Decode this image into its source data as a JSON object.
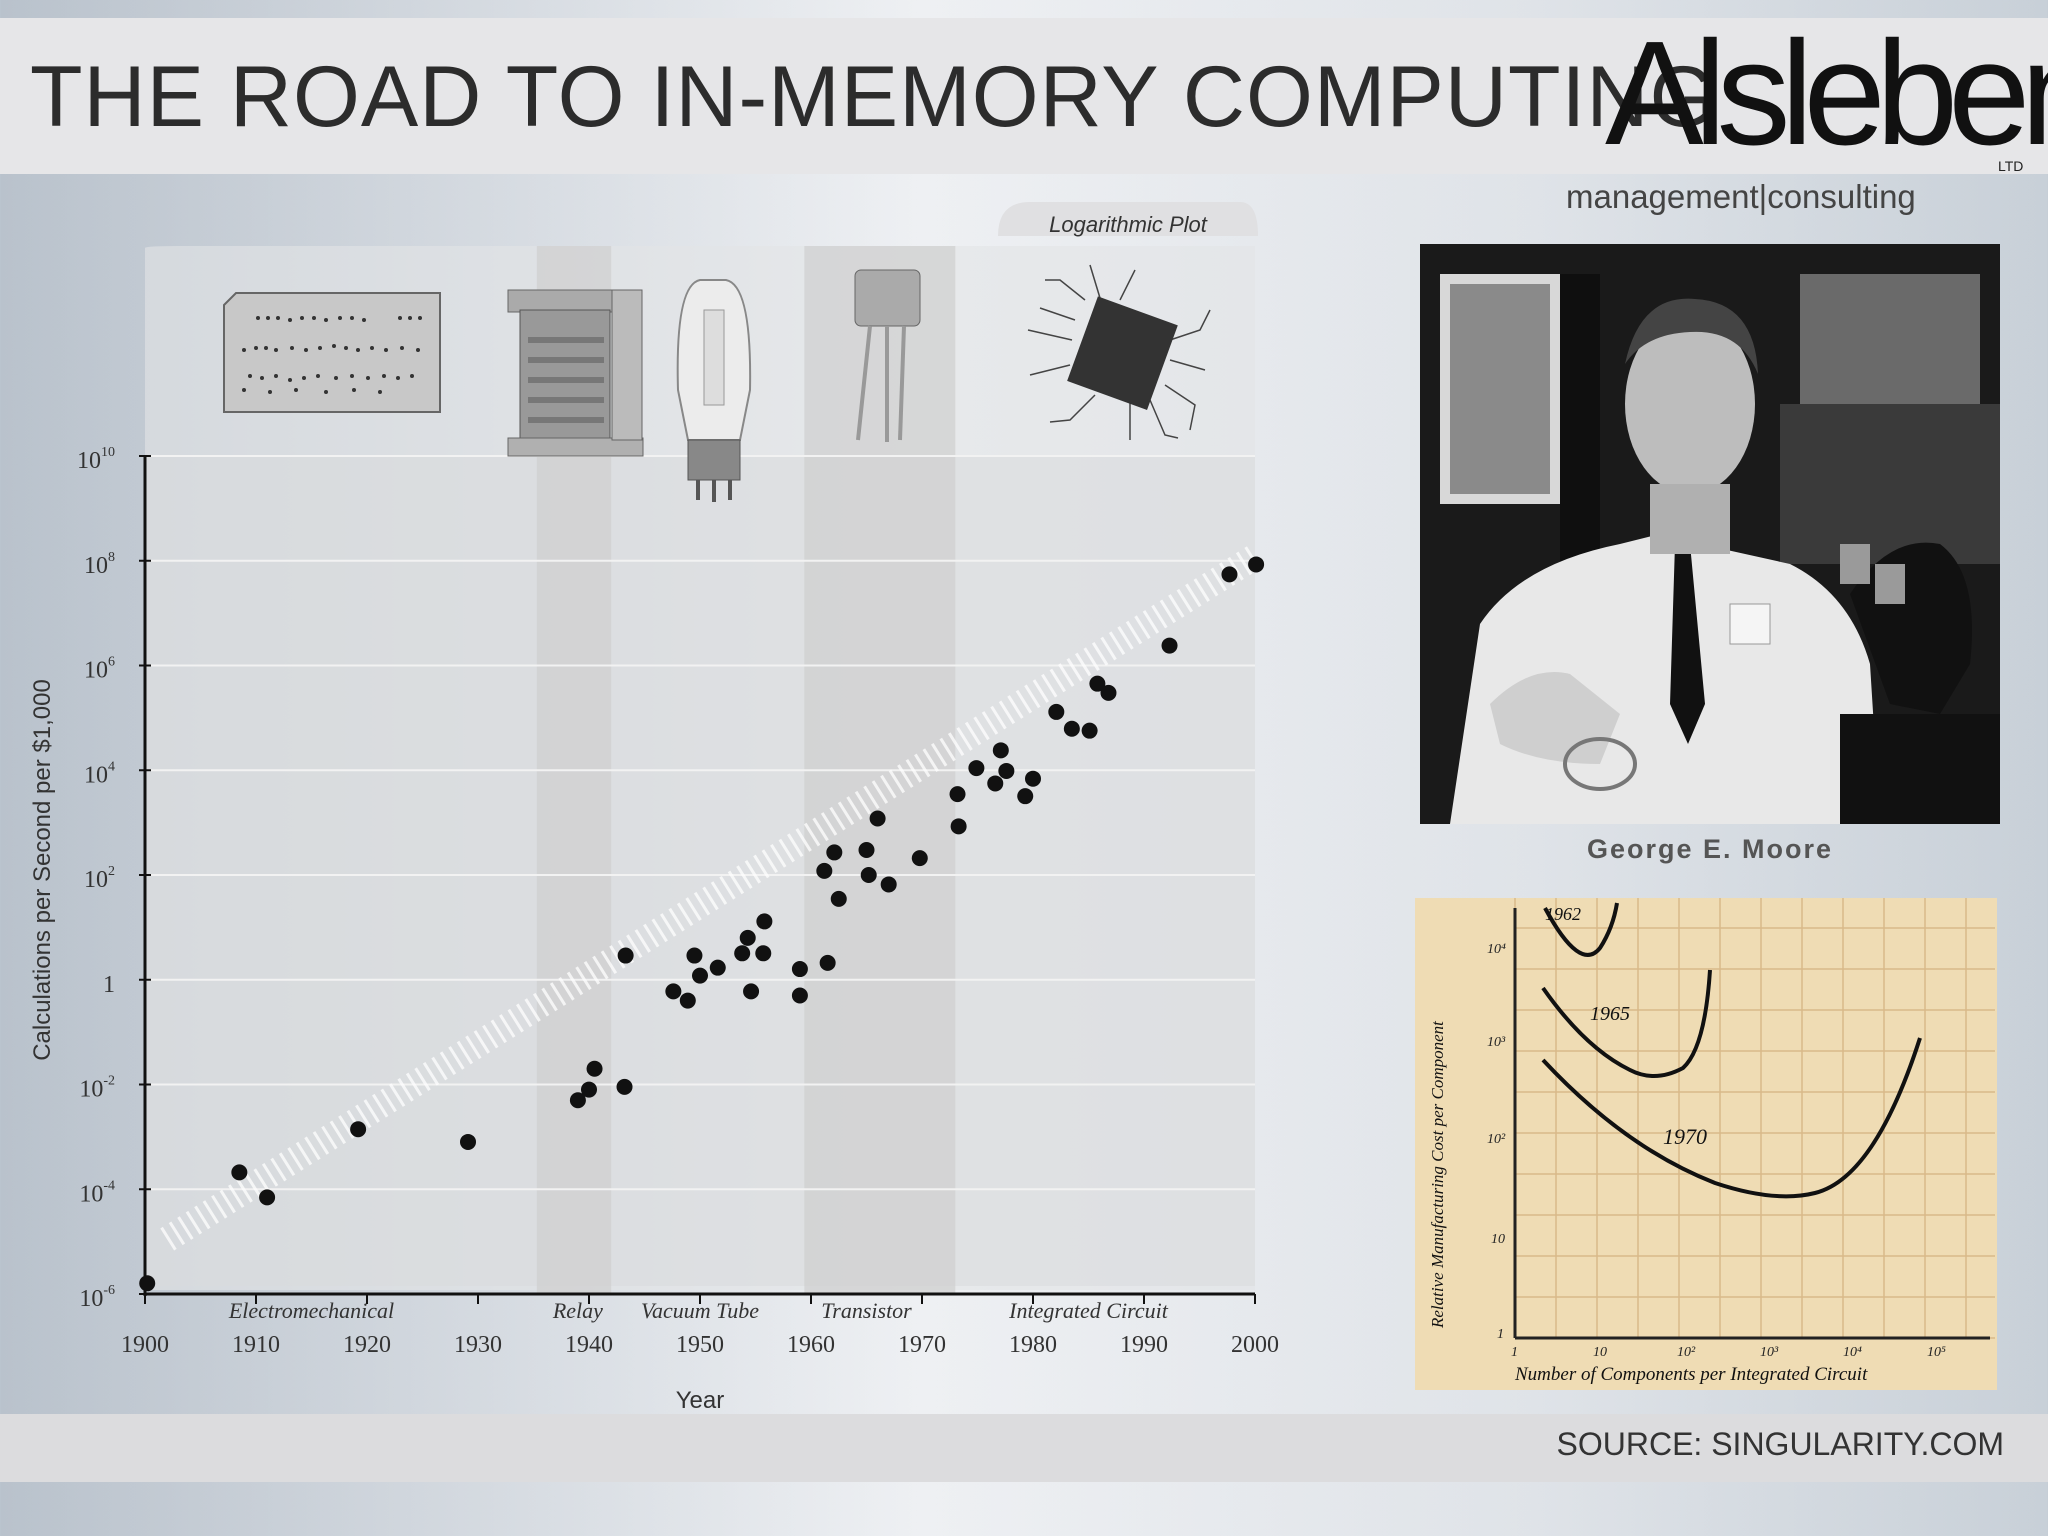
{
  "header": {
    "title": "THE ROAD TO IN-MEMORY COMPUTING",
    "logo_text": "Alsleben",
    "logo_suffix": "LTD",
    "tagline": "management|consulting"
  },
  "photo": {
    "caption": "George E. Moore"
  },
  "moore_graph": {
    "y_axis_label": "Relative Manufacturing Cost per Component",
    "x_axis_label": "Number of Components per Integrated Circuit",
    "curve_labels": [
      "1962",
      "1965",
      "1970"
    ],
    "y_ticks": [
      "1",
      "10",
      "10²",
      "10³",
      "10⁴"
    ],
    "x_ticks": [
      "1",
      "10",
      "10²",
      "10³",
      "10⁴",
      "10⁵"
    ]
  },
  "footer": {
    "source": "SOURCE: SINGULARITY.COM"
  },
  "colors": {
    "band": "#e6e6e8",
    "era_shade": "#cfcfcf",
    "point": "#111111",
    "graph_paper": "#efdcb4",
    "graph_grid": "#d9b98a"
  },
  "chart_data": {
    "type": "scatter",
    "title": "Logarithmic Plot",
    "xlabel": "Year",
    "ylabel": "Calculations per Second per $1,000",
    "xlim": [
      1900,
      2000
    ],
    "y_log_exponent_range": [
      -6,
      10
    ],
    "y_scale": "log",
    "x_ticks": [
      "1900",
      "1910",
      "1920",
      "1930",
      "1940",
      "1950",
      "1960",
      "1970",
      "1980",
      "1990",
      "2000"
    ],
    "y_ticks": [
      {
        "base": "10",
        "exp": "10",
        "e": 10
      },
      {
        "base": "10",
        "exp": "8",
        "e": 8
      },
      {
        "base": "10",
        "exp": "6",
        "e": 6
      },
      {
        "base": "10",
        "exp": "4",
        "e": 4
      },
      {
        "base": "10",
        "exp": "2",
        "e": 2
      },
      {
        "base": "1",
        "exp": "",
        "e": 0
      },
      {
        "base": "10",
        "exp": "-2",
        "e": -2
      },
      {
        "base": "10",
        "exp": "-4",
        "e": -4
      },
      {
        "base": "10",
        "exp": "-6",
        "e": -6
      }
    ],
    "eras": [
      {
        "label": "Electromechanical",
        "year": 1915,
        "shaded": false
      },
      {
        "label": "Relay",
        "year": 1939,
        "shaded": true,
        "from": 1935.3,
        "to": 1942
      },
      {
        "label": "Vacuum Tube",
        "year": 1950,
        "shaded": false
      },
      {
        "label": "Transistor",
        "year": 1965,
        "shaded": true,
        "from": 1959.4,
        "to": 1973
      },
      {
        "label": "Integrated Circuit",
        "year": 1985,
        "shaded": false
      }
    ],
    "points": [
      {
        "x": 1900.2,
        "y": 1.6e-06
      },
      {
        "x": 1908.5,
        "y": 0.00021
      },
      {
        "x": 1911,
        "y": 7e-05
      },
      {
        "x": 1919.2,
        "y": 0.0014
      },
      {
        "x": 1929.1,
        "y": 0.0008
      },
      {
        "x": 1939,
        "y": 0.005
      },
      {
        "x": 1940,
        "y": 0.008
      },
      {
        "x": 1940.5,
        "y": 0.02
      },
      {
        "x": 1943.2,
        "y": 0.009
      },
      {
        "x": 1943.3,
        "y": 2.9
      },
      {
        "x": 1947.6,
        "y": 0.6
      },
      {
        "x": 1948.9,
        "y": 0.4
      },
      {
        "x": 1949.5,
        "y": 2.9
      },
      {
        "x": 1950,
        "y": 1.2
      },
      {
        "x": 1951.6,
        "y": 1.7
      },
      {
        "x": 1953.8,
        "y": 3.2
      },
      {
        "x": 1954.3,
        "y": 6.3
      },
      {
        "x": 1954.6,
        "y": 0.6
      },
      {
        "x": 1955.7,
        "y": 3.2
      },
      {
        "x": 1955.8,
        "y": 13
      },
      {
        "x": 1959,
        "y": 1.6
      },
      {
        "x": 1959,
        "y": 0.5
      },
      {
        "x": 1961.2,
        "y": 120
      },
      {
        "x": 1961.5,
        "y": 2.1
      },
      {
        "x": 1962.1,
        "y": 270
      },
      {
        "x": 1962.5,
        "y": 35
      },
      {
        "x": 1965,
        "y": 300
      },
      {
        "x": 1965.2,
        "y": 100
      },
      {
        "x": 1966,
        "y": 1200
      },
      {
        "x": 1967,
        "y": 66
      },
      {
        "x": 1969.8,
        "y": 210
      },
      {
        "x": 1973.2,
        "y": 3500
      },
      {
        "x": 1973.3,
        "y": 850
      },
      {
        "x": 1974.9,
        "y": 11000
      },
      {
        "x": 1976.6,
        "y": 5600
      },
      {
        "x": 1977.1,
        "y": 24000
      },
      {
        "x": 1977.6,
        "y": 9700
      },
      {
        "x": 1979.3,
        "y": 3200
      },
      {
        "x": 1980,
        "y": 6900
      },
      {
        "x": 1982.1,
        "y": 130000
      },
      {
        "x": 1983.5,
        "y": 62000
      },
      {
        "x": 1985.1,
        "y": 57000
      },
      {
        "x": 1985.8,
        "y": 450000
      },
      {
        "x": 1986.8,
        "y": 300000
      },
      {
        "x": 1992.3,
        "y": 2400000
      },
      {
        "x": 1997.7,
        "y": 55000000
      },
      {
        "x": 2000.1,
        "y": 85000000
      }
    ],
    "trend": {
      "from": [
        1902,
        1.1e-05
      ],
      "to": [
        2000,
        120000000.0
      ]
    }
  }
}
